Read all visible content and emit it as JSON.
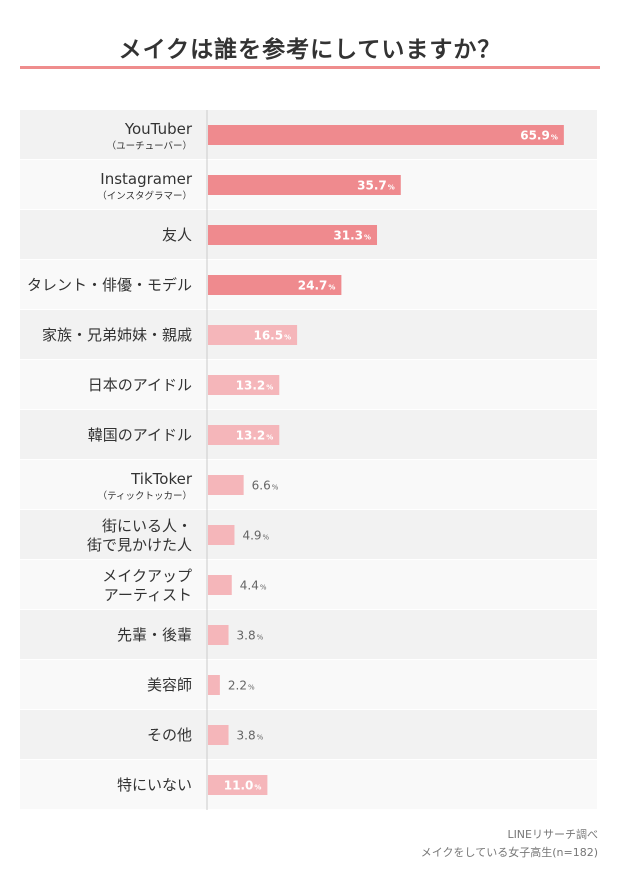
{
  "header": {
    "title": "メイクは誰を参考にしていますか？"
  },
  "chart_data": {
    "type": "bar",
    "orientation": "horizontal",
    "title": "メイクは誰を参考にしていますか？",
    "value_unit": "%",
    "xlim": [
      0,
      100
    ],
    "categories": [
      {
        "lines": [
          "YouTuber"
        ],
        "sub": "（ユーチューバー）"
      },
      {
        "lines": [
          "Instagramer"
        ],
        "sub": "（インスタグラマー）"
      },
      {
        "lines": [
          "友人"
        ],
        "sub": ""
      },
      {
        "lines": [
          "タレント・俳優・モデル"
        ],
        "sub": ""
      },
      {
        "lines": [
          "家族・兄弟姉妹・親戚"
        ],
        "sub": ""
      },
      {
        "lines": [
          "日本のアイドル"
        ],
        "sub": ""
      },
      {
        "lines": [
          "韓国のアイドル"
        ],
        "sub": ""
      },
      {
        "lines": [
          "TikToker"
        ],
        "sub": "（ティックトッカー）"
      },
      {
        "lines": [
          "街にいる人・",
          "街で見かけた人"
        ],
        "sub": ""
      },
      {
        "lines": [
          "メイクアップ",
          "アーティスト"
        ],
        "sub": ""
      },
      {
        "lines": [
          "先輩・後輩"
        ],
        "sub": ""
      },
      {
        "lines": [
          "美容師"
        ],
        "sub": ""
      },
      {
        "lines": [
          "その他"
        ],
        "sub": ""
      },
      {
        "lines": [
          "特にいない"
        ],
        "sub": ""
      }
    ],
    "values": [
      65.9,
      35.7,
      31.3,
      24.7,
      16.5,
      13.2,
      13.2,
      6.6,
      4.9,
      4.4,
      3.8,
      2.2,
      3.8,
      11.0
    ],
    "value_labels": [
      "65.9",
      "35.7",
      "31.3",
      "24.7",
      "16.5",
      "13.2",
      "13.2",
      "6.6",
      "4.9",
      "4.4",
      "3.8",
      "2.2",
      "3.8",
      "11.0"
    ],
    "colors": {
      "top": "#ef8a8e",
      "rest": "#f5b6ba",
      "row_dark": "#f2f2f2",
      "row_light": "#f9f9f9"
    },
    "highlight_count": 4
  },
  "source": {
    "line1": "LINEリサーチ調べ",
    "line2": "メイクをしている女子高生(n=182)"
  }
}
